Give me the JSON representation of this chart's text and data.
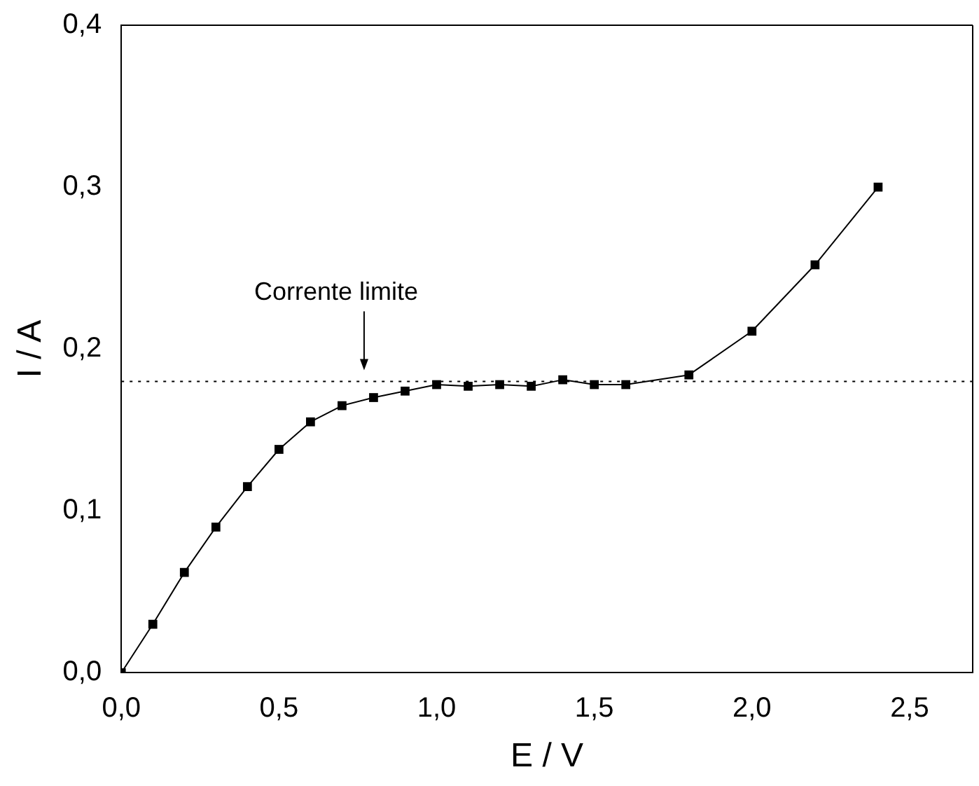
{
  "chart_data": {
    "type": "line",
    "xlabel": "E / V",
    "ylabel": "I / A",
    "x": [
      0,
      0.1,
      0.2,
      0.3,
      0.4,
      0.5,
      0.6,
      0.7,
      0.8,
      0.9,
      1.0,
      1.1,
      1.2,
      1.3,
      1.4,
      1.5,
      1.6,
      1.8,
      2.0,
      2.2,
      2.4
    ],
    "series": [
      {
        "color": "#000000",
        "values": [
          0,
          0.03,
          0.062,
          0.09,
          0.115,
          0.138,
          0.155,
          0.165,
          0.17,
          0.174,
          0.178,
          0.177,
          0.178,
          0.177,
          0.181,
          0.178,
          0.178,
          0.184,
          0.211,
          0.252,
          0.3
        ]
      }
    ],
    "xlim": [
      0,
      2.7
    ],
    "ylim": [
      0,
      0.4
    ],
    "xticks": [
      {
        "value": 0,
        "label": "0,0"
      },
      {
        "value": 0.5,
        "label": "0,5"
      },
      {
        "value": 1,
        "label": "1,0"
      },
      {
        "value": 1.5,
        "label": "1,5"
      },
      {
        "value": 2,
        "label": "2,0"
      },
      {
        "value": 2.5,
        "label": "2,5"
      }
    ],
    "yticks": [
      {
        "value": 0,
        "label": "0,0"
      },
      {
        "value": 0.1,
        "label": "0,1"
      },
      {
        "value": 0.2,
        "label": "0,2"
      },
      {
        "value": 0.3,
        "label": "0,3"
      },
      {
        "value": 0.4,
        "label": "0,4"
      }
    ],
    "ref_lines": [
      {
        "axis": "y",
        "value": 0.18,
        "line_style": "dotted"
      }
    ],
    "annotations": [
      {
        "text": "Corrente limite",
        "x": 0.77,
        "y": 0.18
      }
    ],
    "marker": "square",
    "line_style": "solid",
    "grid": false,
    "legend": false
  }
}
